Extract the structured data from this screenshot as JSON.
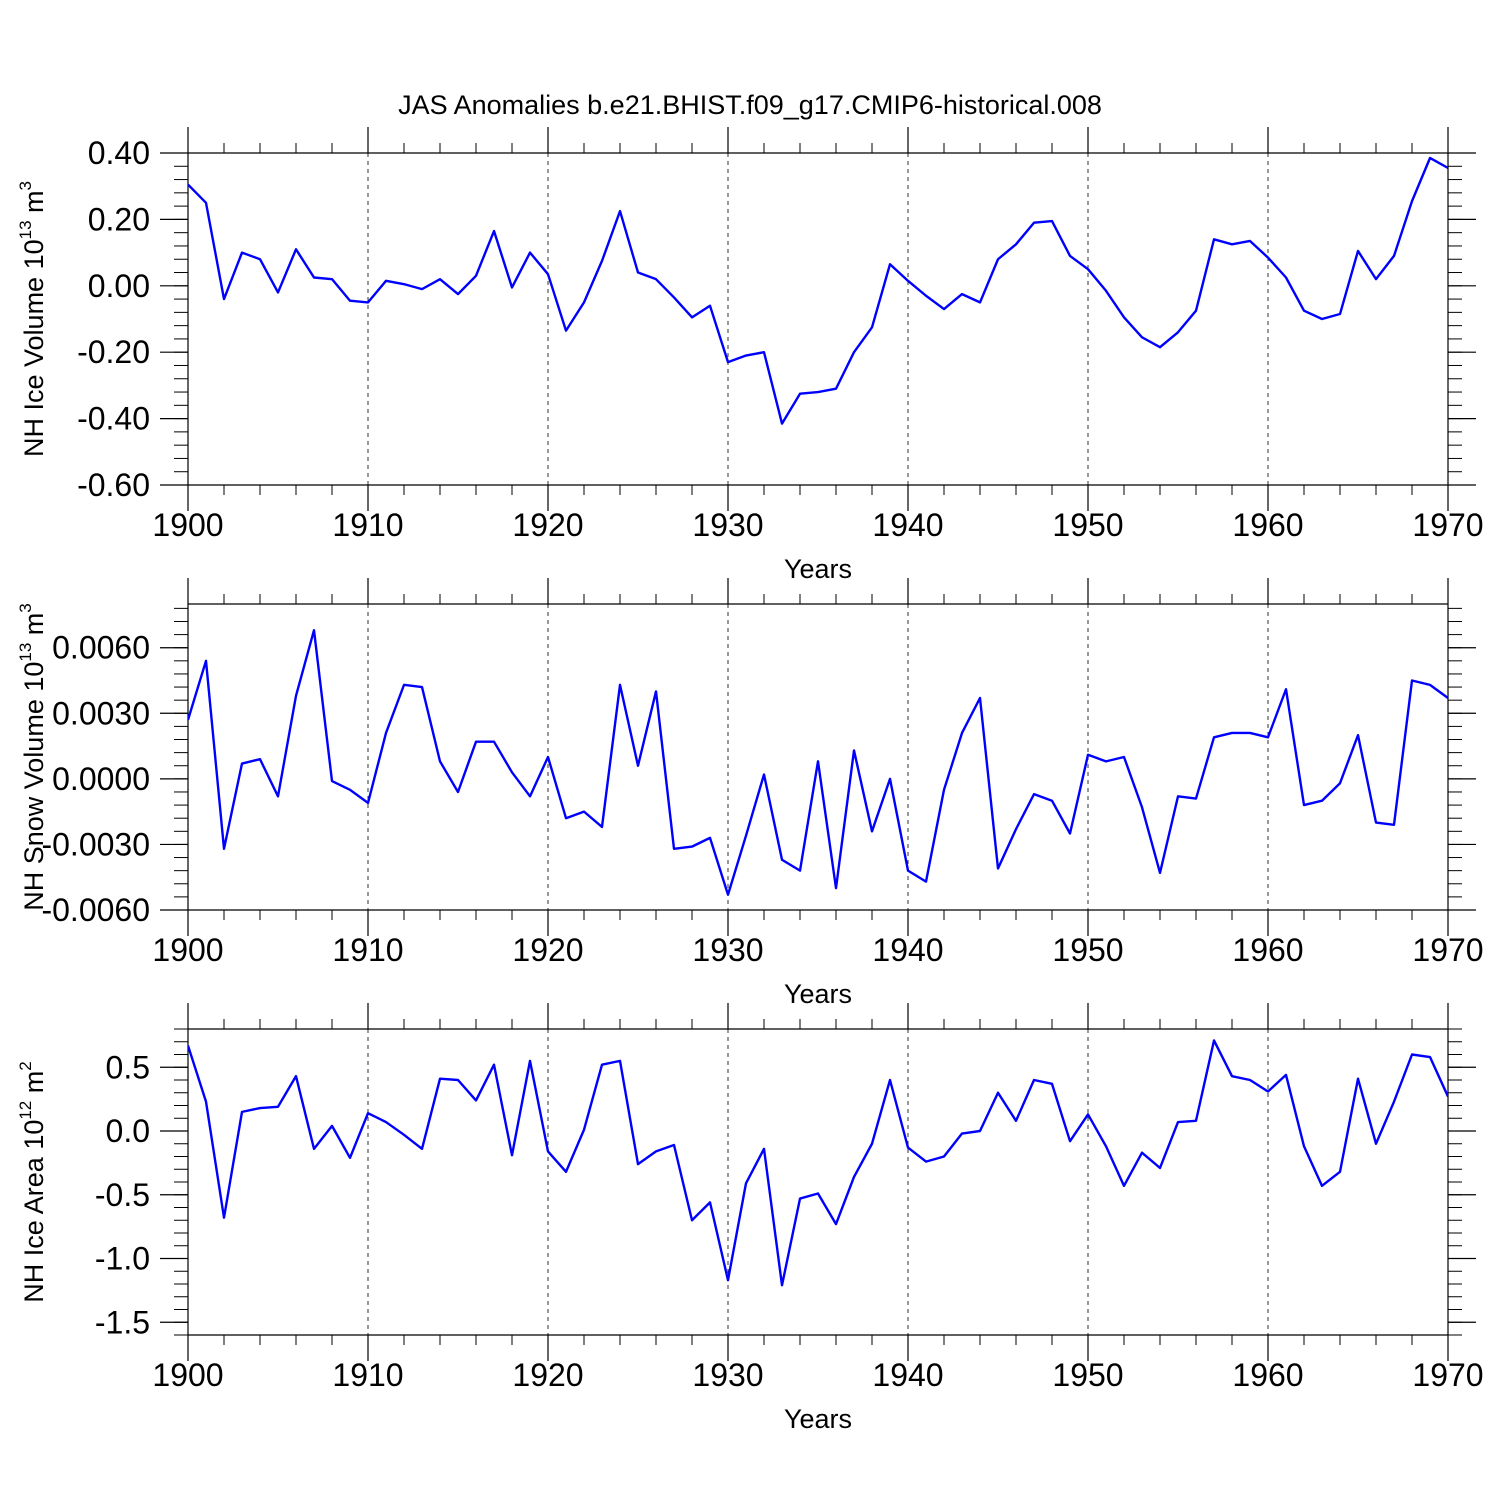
{
  "title": "JAS Anomalies b.e21.BHIST.f09_g17.CMIP6-historical.008",
  "colors": {
    "line": "#0000ff",
    "axes": "#000000",
    "grid": "#000000"
  },
  "chart_data": [
    {
      "type": "line",
      "series_name": "NH Ice Volume",
      "ylabel": {
        "main": "NH Ice Volume 10",
        "sup1": "13",
        "mid": " m",
        "sup2": "3"
      },
      "xlabel": "Years",
      "xlim": [
        1900,
        1970
      ],
      "ylim": [
        -0.6,
        0.4
      ],
      "xticks": [
        1900,
        1910,
        1920,
        1930,
        1940,
        1950,
        1960,
        1970
      ],
      "xtick_labels": [
        "1900",
        "1910",
        "1920",
        "1930",
        "1940",
        "1950",
        "1960",
        "1970"
      ],
      "yticks": [
        -0.6,
        -0.4,
        -0.2,
        0.0,
        0.2,
        0.4
      ],
      "ytick_labels": [
        "-0.60",
        "-0.40",
        "-0.20",
        "0.00",
        "0.20",
        "0.40"
      ],
      "x_start": 1900,
      "values": [
        0.305,
        0.25,
        -0.04,
        0.1,
        0.08,
        -0.02,
        0.11,
        0.025,
        0.02,
        -0.045,
        -0.05,
        0.015,
        0.005,
        -0.01,
        0.02,
        -0.025,
        0.03,
        0.165,
        -0.005,
        0.1,
        0.035,
        -0.135,
        -0.05,
        0.075,
        0.225,
        0.04,
        0.02,
        -0.035,
        -0.095,
        -0.06,
        -0.23,
        -0.21,
        -0.2,
        -0.415,
        -0.325,
        -0.32,
        -0.31,
        -0.2,
        -0.125,
        0.065,
        0.015,
        -0.03,
        -0.07,
        -0.025,
        -0.05,
        0.08,
        0.125,
        0.19,
        0.195,
        0.09,
        0.05,
        -0.015,
        -0.095,
        -0.155,
        -0.185,
        -0.14,
        -0.075,
        0.14,
        0.125,
        0.135,
        0.085,
        0.025,
        -0.075,
        -0.1,
        -0.085,
        0.105,
        0.02,
        0.09,
        0.255,
        0.385,
        0.355
      ]
    },
    {
      "type": "line",
      "series_name": "NH Snow Volume",
      "ylabel": {
        "main": "NH Snow Volume 10",
        "sup1": "13",
        "mid": " m",
        "sup2": "3"
      },
      "xlabel": "Years",
      "xlim": [
        1900,
        1970
      ],
      "ylim": [
        -0.006,
        0.008
      ],
      "xticks": [
        1900,
        1910,
        1920,
        1930,
        1940,
        1950,
        1960,
        1970
      ],
      "xtick_labels": [
        "1900",
        "1910",
        "1920",
        "1930",
        "1940",
        "1950",
        "1960",
        "1970"
      ],
      "yticks": [
        -0.006,
        -0.003,
        0.0,
        0.003,
        0.006
      ],
      "ytick_labels": [
        "-0.0060",
        "-0.0030",
        "0.0000",
        "0.0030",
        "0.0060"
      ],
      "x_start": 1900,
      "values": [
        0.0027,
        0.0054,
        -0.0032,
        0.0007,
        0.0009,
        -0.0008,
        0.0038,
        0.0068,
        -0.0001,
        -0.0005,
        -0.0011,
        0.0021,
        0.0043,
        0.0042,
        0.0008,
        -0.0006,
        0.0017,
        0.0017,
        0.0003,
        -0.0008,
        0.001,
        -0.0018,
        -0.0015,
        -0.0022,
        0.0043,
        0.0006,
        0.004,
        -0.0032,
        -0.0031,
        -0.0027,
        -0.0053,
        -0.0026,
        0.0002,
        -0.0037,
        -0.0042,
        0.0008,
        -0.005,
        0.0013,
        -0.0024,
        0.0,
        -0.0042,
        -0.0047,
        -0.0005,
        0.0021,
        0.0037,
        -0.0041,
        -0.0023,
        -0.0007,
        -0.001,
        -0.0025,
        0.0011,
        0.0008,
        0.001,
        -0.0013,
        -0.0043,
        -0.0008,
        -0.0009,
        0.0019,
        0.0021,
        0.0021,
        0.0019,
        0.0041,
        -0.0012,
        -0.001,
        -0.0002,
        0.002,
        -0.002,
        -0.0021,
        0.0045,
        0.0043,
        0.0037
      ]
    },
    {
      "type": "line",
      "series_name": "NH Ice Area",
      "ylabel": {
        "main": "NH Ice Area 10",
        "sup1": "12",
        "mid": " m",
        "sup2": "2"
      },
      "xlabel": "Years",
      "xlim": [
        1900,
        1970
      ],
      "ylim": [
        -1.6,
        0.8
      ],
      "xticks": [
        1900,
        1910,
        1920,
        1930,
        1940,
        1950,
        1960,
        1970
      ],
      "xtick_labels": [
        "1900",
        "1910",
        "1920",
        "1930",
        "1940",
        "1950",
        "1960",
        "1970"
      ],
      "yticks": [
        -1.5,
        -1.0,
        -0.5,
        0.0,
        0.5
      ],
      "ytick_labels": [
        "-1.5",
        "-1.0",
        "-0.5",
        "0.0",
        "0.5"
      ],
      "x_start": 1900,
      "values": [
        0.67,
        0.23,
        -0.68,
        0.15,
        0.18,
        0.19,
        0.43,
        -0.14,
        0.04,
        -0.21,
        0.14,
        0.07,
        -0.03,
        -0.14,
        0.41,
        0.4,
        0.24,
        0.52,
        -0.19,
        0.55,
        -0.16,
        -0.32,
        0.01,
        0.52,
        0.55,
        -0.26,
        -0.16,
        -0.11,
        -0.7,
        -0.56,
        -1.17,
        -0.41,
        -0.14,
        -1.21,
        -0.53,
        -0.49,
        -0.73,
        -0.36,
        -0.1,
        0.4,
        -0.13,
        -0.24,
        -0.2,
        -0.02,
        0.0,
        0.3,
        0.08,
        0.4,
        0.37,
        -0.08,
        0.13,
        -0.12,
        -0.43,
        -0.17,
        -0.29,
        0.07,
        0.08,
        0.71,
        0.43,
        0.4,
        0.31,
        0.44,
        -0.12,
        -0.43,
        -0.32,
        0.41,
        -0.1,
        0.23,
        0.6,
        0.58,
        0.27
      ]
    }
  ]
}
